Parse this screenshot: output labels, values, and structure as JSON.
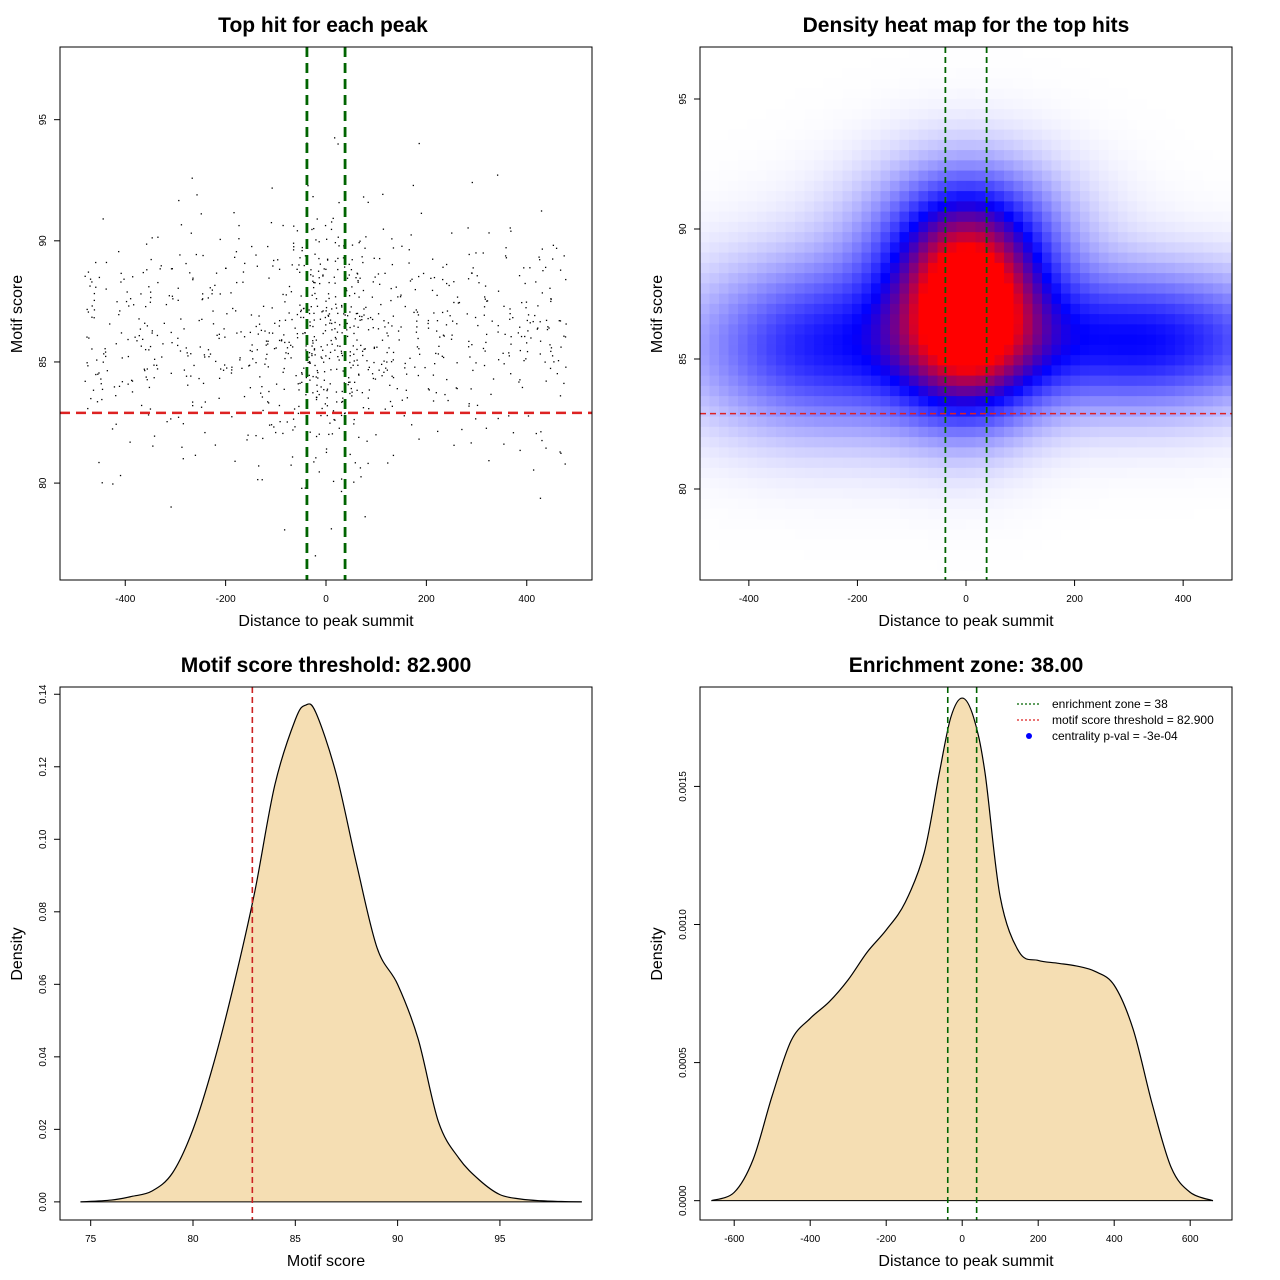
{
  "chart_data": [
    {
      "type": "scatter",
      "title": "Top hit for each peak",
      "xlabel": "Distance to peak summit",
      "ylabel": "Motif score",
      "xlim": [
        -530,
        530
      ],
      "ylim": [
        76,
        98
      ],
      "xticks": [
        -400,
        -200,
        0,
        200,
        400
      ],
      "yticks": [
        80,
        85,
        90,
        95
      ],
      "vlines": [
        -38,
        38
      ],
      "hline": 82.9,
      "vline_color": "#006400",
      "hline_color": "#dd2222",
      "point_color": "#000000",
      "points_note_count": 1000
    },
    {
      "type": "heatmap",
      "title": "Density heat map for the top hits",
      "xlabel": "Distance to peak summit",
      "ylabel": "Motif score",
      "xlim": [
        -490,
        490
      ],
      "ylim": [
        76.5,
        97.0
      ],
      "xticks": [
        -400,
        -200,
        0,
        200,
        400
      ],
      "yticks": [
        80,
        85,
        90,
        95
      ],
      "vlines": [
        -38,
        38
      ],
      "hline": 82.9,
      "low_color": "#ffffff",
      "mid_color": "#0000ff",
      "high_color": "#ff0000"
    },
    {
      "type": "area",
      "title": "Motif score threshold: 82.900",
      "xlabel": "Motif score",
      "ylabel": "Density",
      "xlim": [
        73.5,
        99.5
      ],
      "ylim": [
        -0.005,
        0.142
      ],
      "xticks": [
        75,
        80,
        85,
        90,
        95
      ],
      "yticks": [
        0.0,
        0.02,
        0.04,
        0.06,
        0.08,
        0.1,
        0.12,
        0.14
      ],
      "ytick_labels": [
        "0.00",
        "0.02",
        "0.04",
        "0.06",
        "0.08",
        "0.10",
        "0.12",
        "0.14"
      ],
      "fill_color": "#f5deb3",
      "vline": 82.9,
      "vline_color": "#cc2222",
      "x": [
        74.5,
        76,
        77,
        78,
        79,
        80,
        81,
        82,
        83,
        84,
        85,
        85.5,
        86,
        87,
        88,
        89,
        90,
        91,
        92,
        93,
        94,
        95,
        96,
        97,
        98,
        99
      ],
      "y": [
        0.0,
        0.0005,
        0.0015,
        0.003,
        0.008,
        0.02,
        0.038,
        0.06,
        0.085,
        0.115,
        0.133,
        0.137,
        0.135,
        0.118,
        0.093,
        0.07,
        0.06,
        0.045,
        0.022,
        0.012,
        0.006,
        0.002,
        0.0008,
        0.0003,
        0.0001,
        0.0
      ]
    },
    {
      "type": "area",
      "title": "Enrichment zone: 38.00",
      "xlabel": "Distance to peak summit",
      "ylabel": "Density",
      "xlim": [
        -690,
        710
      ],
      "ylim": [
        -7e-05,
        0.00186
      ],
      "xticks": [
        -600,
        -400,
        -200,
        0,
        200,
        400,
        600
      ],
      "yticks": [
        0.0,
        0.0005,
        0.001,
        0.0015
      ],
      "ytick_labels": [
        "0.0000",
        "0.0005",
        "0.0010",
        "0.0015"
      ],
      "fill_color": "#f5deb3",
      "vlines": [
        -38,
        38
      ],
      "vline_color": "#006400",
      "x": [
        -660,
        -600,
        -550,
        -500,
        -450,
        -400,
        -350,
        -300,
        -250,
        -200,
        -150,
        -100,
        -60,
        -30,
        0,
        30,
        60,
        100,
        150,
        200,
        250,
        300,
        350,
        400,
        450,
        500,
        550,
        600,
        660
      ],
      "y": [
        0.0,
        3e-05,
        0.00015,
        0.00038,
        0.00058,
        0.00066,
        0.00072,
        0.0008,
        0.0009,
        0.00098,
        0.00108,
        0.00126,
        0.00155,
        0.00175,
        0.00182,
        0.00175,
        0.00155,
        0.0011,
        0.0009,
        0.00087,
        0.00086,
        0.00085,
        0.00083,
        0.00078,
        0.00062,
        0.00035,
        0.00012,
        3e-05,
        0.0
      ]
    }
  ],
  "legend": {
    "items": [
      {
        "label": "enrichment zone = 38",
        "color": "#006400",
        "kind": "line"
      },
      {
        "label": "motif score threshold = 82.900",
        "color": "#dd2222",
        "kind": "line"
      },
      {
        "label": "centrality p-val = -3e-04",
        "color": "#0000ff",
        "kind": "dot"
      }
    ]
  }
}
